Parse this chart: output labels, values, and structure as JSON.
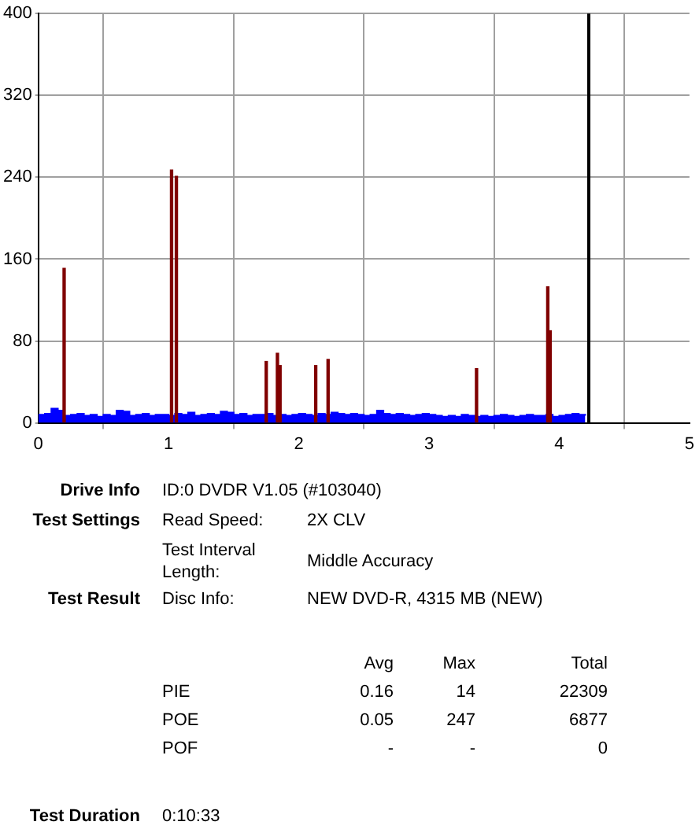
{
  "chart_data": {
    "type": "bar",
    "xlim": [
      0,
      5
    ],
    "xticks": [
      0,
      1,
      2,
      3,
      4,
      5
    ],
    "ylim": [
      0,
      400
    ],
    "yticks": [
      0,
      80,
      160,
      240,
      320,
      400
    ],
    "grid": true,
    "series": [
      {
        "type": "area",
        "color": "#0000ff",
        "x": [
          0,
          0.05,
          0.1,
          0.15,
          0.2,
          0.25,
          0.3,
          0.35,
          0.4,
          0.45,
          0.5,
          0.55,
          0.6,
          0.65,
          0.7,
          0.75,
          0.8,
          0.85,
          0.9,
          0.95,
          1,
          1.05,
          1.1,
          1.15,
          1.2,
          1.25,
          1.3,
          1.35,
          1.4,
          1.45,
          1.5,
          1.55,
          1.6,
          1.65,
          1.7,
          1.75,
          1.8,
          1.85,
          1.9,
          1.95,
          2,
          2.05,
          2.1,
          2.15,
          2.2,
          2.25,
          2.3,
          2.35,
          2.4,
          2.45,
          2.5,
          2.55,
          2.6,
          2.65,
          2.7,
          2.75,
          2.8,
          2.85,
          2.9,
          2.95,
          3,
          3.05,
          3.1,
          3.15,
          3.2,
          3.25,
          3.3,
          3.35,
          3.4,
          3.45,
          3.5,
          3.55,
          3.6,
          3.65,
          3.7,
          3.75,
          3.8,
          3.85,
          3.9,
          3.95,
          4,
          4.05,
          4.1,
          4.15,
          4.2
        ],
        "values": [
          8,
          9,
          14,
          12,
          7,
          8,
          9,
          7,
          8,
          6,
          8,
          7,
          12,
          11,
          7,
          8,
          9,
          7,
          8,
          8,
          7,
          9,
          8,
          10,
          7,
          8,
          9,
          8,
          11,
          10,
          8,
          9,
          7,
          8,
          8,
          9,
          7,
          8,
          7,
          8,
          9,
          8,
          7,
          9,
          8,
          10,
          9,
          8,
          9,
          8,
          7,
          8,
          12,
          9,
          8,
          9,
          8,
          7,
          8,
          9,
          8,
          7,
          6,
          7,
          6,
          8,
          7,
          6,
          7,
          6,
          7,
          8,
          7,
          6,
          7,
          8,
          7,
          7,
          8,
          6,
          7,
          8,
          9,
          8,
          7
        ]
      },
      {
        "color": "#800000",
        "x": [
          0.198,
          1.023,
          1.06,
          1.75,
          1.836,
          1.856,
          2.13,
          2.225,
          3.365,
          3.912,
          3.93
        ],
        "values": [
          151,
          247,
          241,
          60,
          68,
          56,
          56,
          62,
          53,
          133,
          90
        ]
      }
    ],
    "ref_lines": [
      {
        "axis": "x",
        "value": 4.227,
        "color": "#000000"
      }
    ],
    "annotations": [
      "Drive Info",
      "ID:0 DVDR V1.05 (#103040)",
      "Test Settings",
      "Read Speed:",
      "2X CLV",
      "Test Interval Length:",
      "Middle Accuracy",
      "Test Result",
      "Disc Info:",
      "NEW DVD-R, 4315 MB (NEW)",
      "Avg",
      "Max",
      "Total",
      "PIE",
      "0.16",
      "14",
      "22309",
      "POE",
      "0.05",
      "247",
      "6877",
      "POF",
      "-",
      "-",
      "0",
      "Test Duration",
      "0:10:33"
    ]
  }
}
